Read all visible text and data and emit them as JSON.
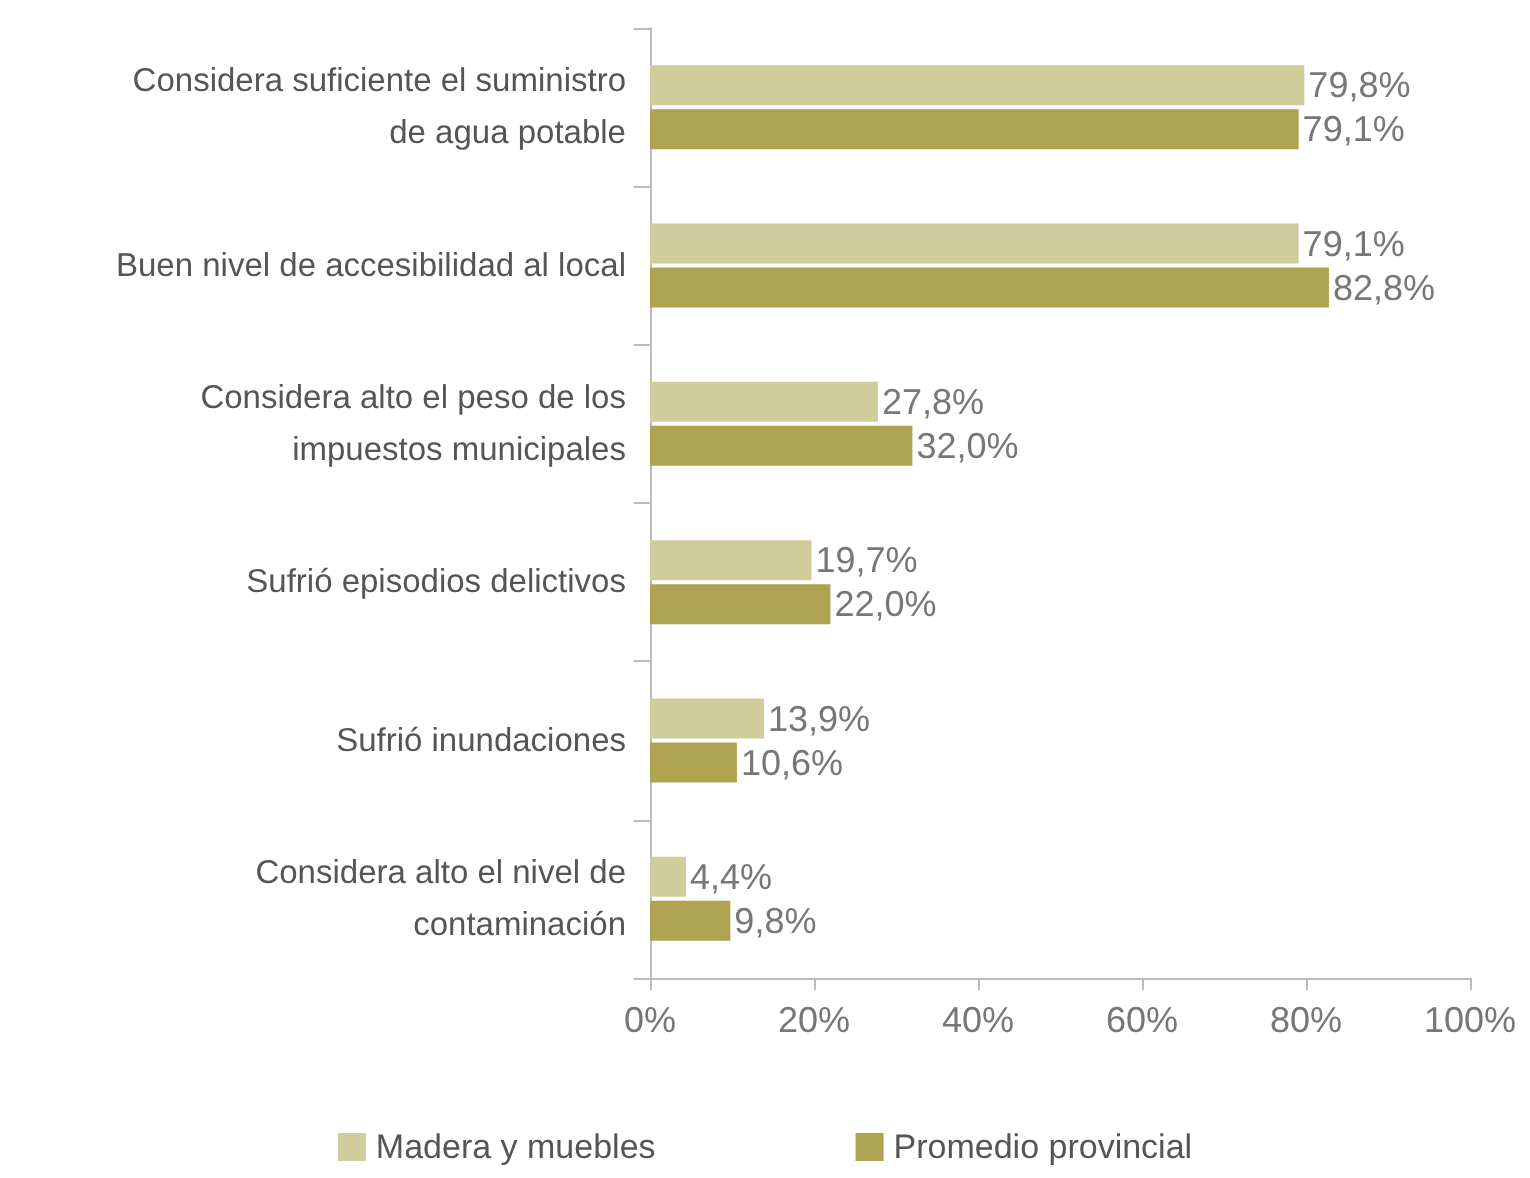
{
  "chart_data": {
    "type": "bar",
    "orientation": "horizontal",
    "categories": [
      "Considera suficiente el suministro\nde agua potable",
      "Buen nivel de accesibilidad al local",
      "Considera alto el peso de los\nimpuestos municipales",
      "Sufrió episodios delictivos",
      "Sufrió inundaciones",
      "Considera alto el nivel de\ncontaminación"
    ],
    "series": [
      {
        "name": "Madera y muebles",
        "color": "#d0cc9b",
        "values": [
          79.8,
          79.1,
          27.8,
          19.7,
          13.9,
          4.4
        ],
        "value_labels": [
          "79,8%",
          "79,1%",
          "27,8%",
          "19,7%",
          "13,9%",
          "4,4%"
        ]
      },
      {
        "name": "Promedio provincial",
        "color": "#ada350",
        "values": [
          79.1,
          82.8,
          32.0,
          22.0,
          10.6,
          9.8
        ],
        "value_labels": [
          "79,1%",
          "82,8%",
          "32,0%",
          "22,0%",
          "10,6%",
          "9,8%"
        ]
      }
    ],
    "xlim": [
      0,
      100
    ],
    "xticks": [
      {
        "value": 0,
        "label": "0%"
      },
      {
        "value": 20,
        "label": "20%"
      },
      {
        "value": 40,
        "label": "40%"
      },
      {
        "value": 60,
        "label": "60%"
      },
      {
        "value": 80,
        "label": "80%"
      },
      {
        "value": 100,
        "label": "100%"
      }
    ],
    "grid": false,
    "legend": "bottom"
  }
}
